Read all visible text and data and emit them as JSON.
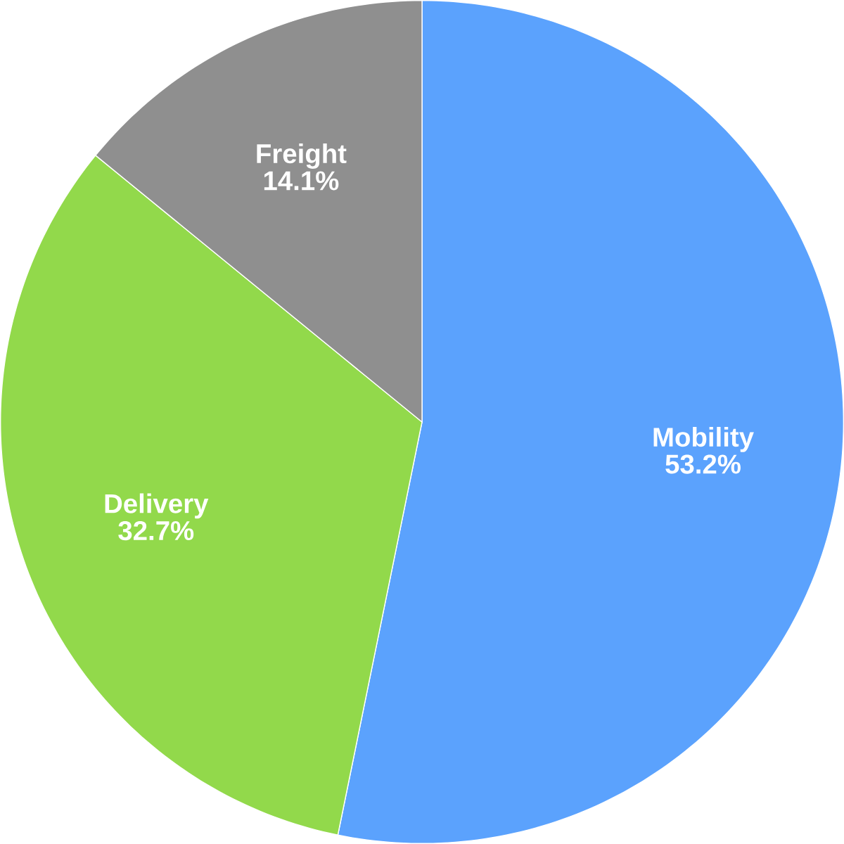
{
  "chart_data": {
    "type": "pie",
    "categories": [
      "Mobility",
      "Delivery",
      "Freight"
    ],
    "values": [
      53.2,
      32.7,
      14.1
    ],
    "colors": [
      "#5ba2fd",
      "#92d94b",
      "#8f8f8f"
    ],
    "value_labels": [
      "53.2%",
      "32.7%",
      "14.1%"
    ]
  }
}
